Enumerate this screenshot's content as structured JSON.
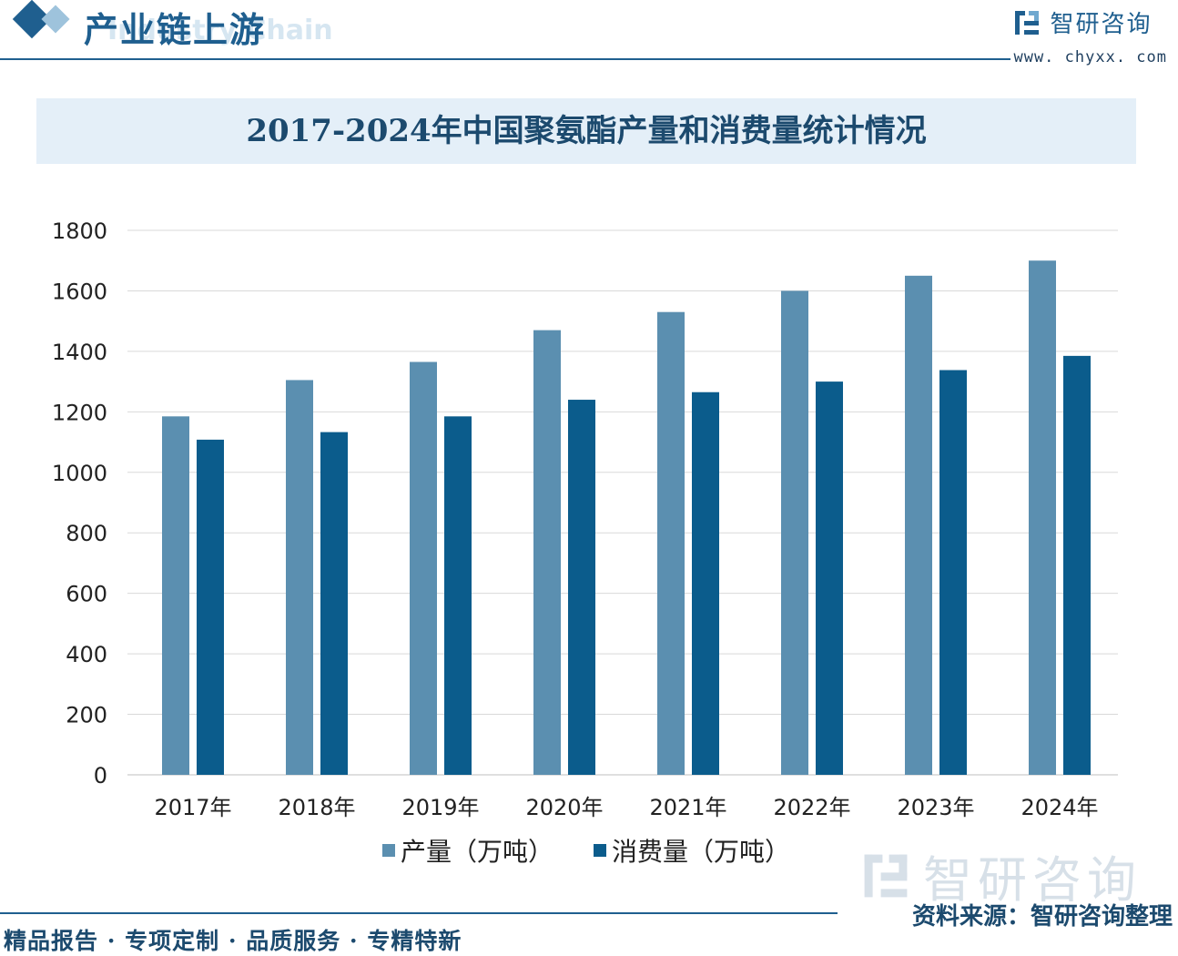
{
  "header": {
    "section_title": "产业链上游",
    "section_subtitle": "Industry Chain",
    "brand_name": "智研咨询",
    "brand_url": "www. chyxx. com"
  },
  "colors": {
    "production": "#5b8fb0",
    "consumption": "#0b5c8c",
    "accent": "#1f5f8f"
  },
  "chart_data": {
    "type": "bar",
    "title": "2017-2024年中国聚氨酯产量和消费量统计情况",
    "categories": [
      "2017年",
      "2018年",
      "2019年",
      "2020年",
      "2021年",
      "2022年",
      "2023年",
      "2024年"
    ],
    "series": [
      {
        "name": "产量（万吨）",
        "values": [
          1185,
          1305,
          1365,
          1470,
          1530,
          1600,
          1650,
          1700
        ]
      },
      {
        "name": "消费量（万吨）",
        "values": [
          1108,
          1133,
          1185,
          1240,
          1265,
          1300,
          1338,
          1385
        ]
      }
    ],
    "xlabel": "",
    "ylabel": "",
    "ylim": [
      0,
      1800
    ],
    "yticks": [
      0,
      200,
      400,
      600,
      800,
      1000,
      1200,
      1400,
      1600,
      1800
    ],
    "grid": true,
    "legend_position": "bottom"
  },
  "source": "资料来源：智研咨询整理",
  "footer": "精品报告 · 专项定制 · 品质服务 · 专精特新",
  "watermark": "智研咨询"
}
